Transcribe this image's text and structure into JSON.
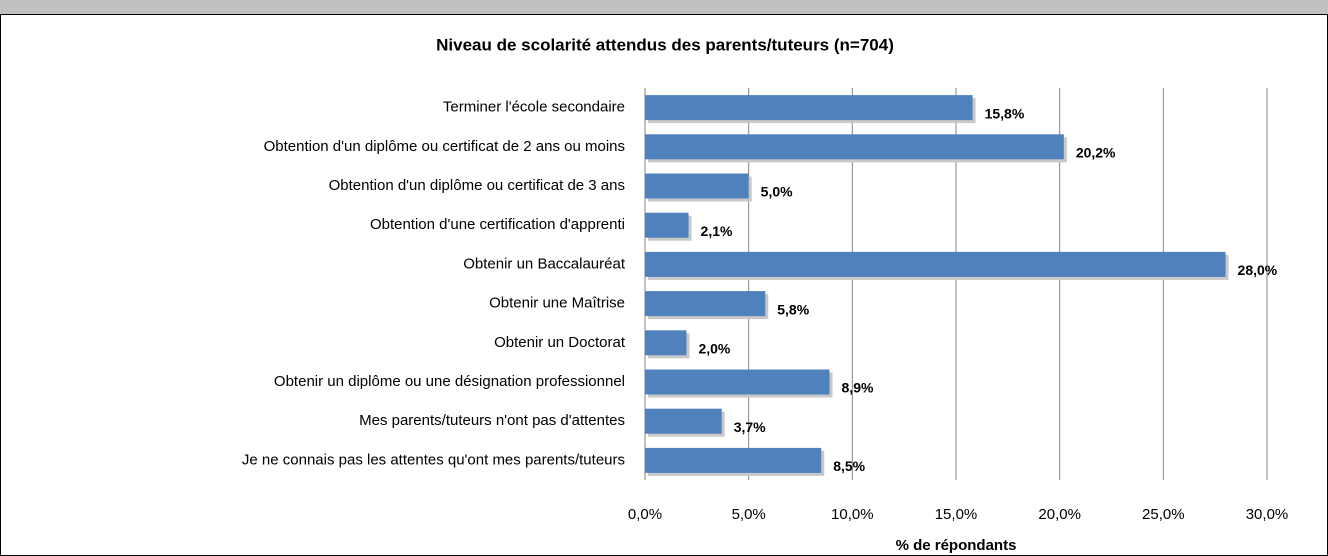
{
  "chart_data": {
    "type": "bar",
    "orientation": "horizontal",
    "title": "Niveau de scolarité attendus des parents/tuteurs (n=704)",
    "xlabel": "% de répondants",
    "categories": [
      "Terminer l'école secondaire",
      "Obtention d'un diplôme ou certificat de 2 ans ou moins",
      "Obtention d'un diplôme ou certificat de 3 ans",
      "Obtention d'une certification d'apprenti",
      "Obtenir un Baccalauréat",
      "Obtenir une Maîtrise",
      "Obtenir un Doctorat",
      "Obtenir un diplôme ou une désignation professionnel",
      "Mes parents/tuteurs n'ont pas d'attentes",
      "Je ne connais pas les attentes qu'ont mes parents/tuteurs"
    ],
    "values": [
      15.8,
      20.2,
      5.0,
      2.1,
      28.0,
      5.8,
      2.0,
      8.9,
      3.7,
      8.5
    ],
    "value_labels": [
      "15,8%",
      "20,2%",
      "5,0%",
      "2,1%",
      "28,0%",
      "5,8%",
      "2,0%",
      "8,9%",
      "3,7%",
      "8,5%"
    ],
    "color": "#4f81bd",
    "xlim": [
      0,
      30
    ],
    "xticks": [
      {
        "value": 0,
        "label": "0,0%"
      },
      {
        "value": 5,
        "label": "5,0%"
      },
      {
        "value": 10,
        "label": "10,0%"
      },
      {
        "value": 15,
        "label": "15,0%"
      },
      {
        "value": 20,
        "label": "20,0%"
      },
      {
        "value": 25,
        "label": "25,0%"
      },
      {
        "value": 30,
        "label": "30,0%"
      }
    ],
    "grid": true
  }
}
